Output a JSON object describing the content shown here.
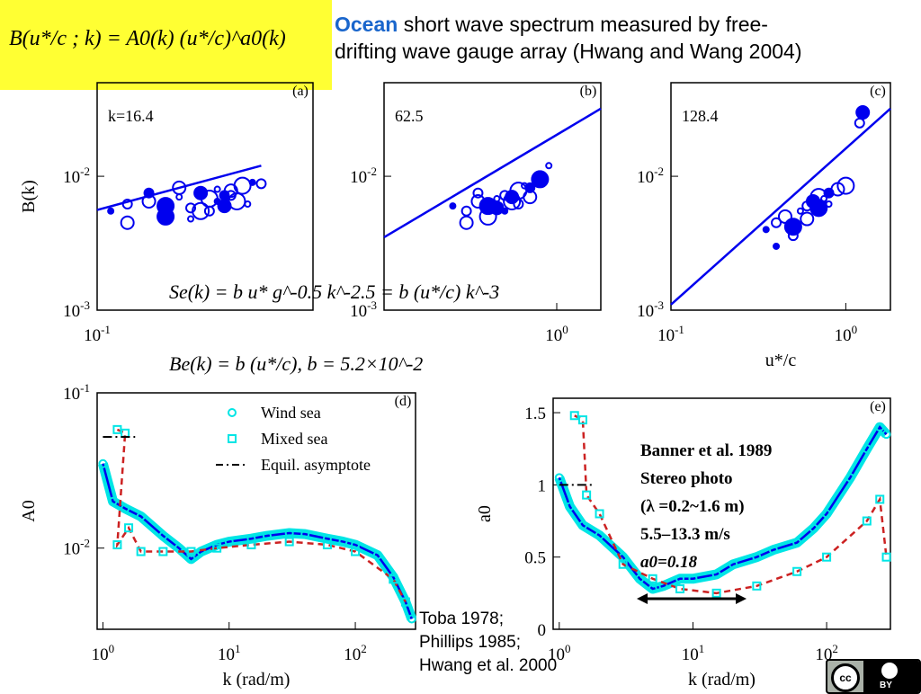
{
  "colors": {
    "accent": "#1a66cc",
    "series": "#0000ee",
    "wind": "#00e5e5",
    "dashed": "#cc2222",
    "highlight": "#ffff33"
  },
  "header": {
    "formula": "B(u*/c ; k) = A0(k) (u*/c)^a0(k)",
    "accent_word": "Ocean",
    "title_line1": " short wave spectrum measured by free-",
    "title_line2": "drifting wave gauge array (Hwang and Wang 2004)"
  },
  "equations": {
    "eq1": "Se(k) = b u* g^-0.5 k^-2.5 = b (u*/c) k^-3",
    "eq2": "Be(k) = b (u*/c),    b = 5.2×10^-2"
  },
  "citation": {
    "line1": "Toba 1978;",
    "line2": "Phillips 1985;",
    "line3": "Hwang et al. 2000"
  },
  "annotation": {
    "line1": "Banner et al. 1989",
    "line2": "Stereo photo",
    "line3": "(λ =0.2~1.6 m)",
    "line4": "5.5–13.3 m/s",
    "line5": "a0=0.18"
  },
  "license_icon": "cc-by-icon",
  "license_label": "BY",
  "chart_data": [
    {
      "type": "scatter",
      "panel": "(a)",
      "label": "k=16.4",
      "ylabel": "B(k)",
      "yscale": "log",
      "xscale": "log",
      "ylim": [
        0.001,
        0.05
      ],
      "xlim": [
        0.1,
        1.8
      ],
      "ytick_labels": [
        "10^-2",
        "10^-3"
      ],
      "xtick_labels": [
        "10^-1"
      ],
      "fit": {
        "x": [
          0.1,
          0.9
        ],
        "y": [
          0.0056,
          0.012
        ]
      },
      "points": {
        "x": [
          0.12,
          0.15,
          0.2,
          0.25,
          0.3,
          0.35,
          0.4,
          0.45,
          0.5,
          0.55,
          0.6,
          0.7,
          0.8,
          0.9,
          0.15,
          0.25,
          0.35,
          0.45,
          0.55,
          0.65,
          0.75,
          0.2,
          0.3,
          0.4,
          0.5,
          0.6
        ],
        "y": [
          0.0055,
          0.0062,
          0.0065,
          0.006,
          0.007,
          0.0058,
          0.0075,
          0.0068,
          0.008,
          0.0072,
          0.0078,
          0.0085,
          0.009,
          0.0088,
          0.0045,
          0.005,
          0.0048,
          0.0055,
          0.006,
          0.0065,
          0.0062,
          0.0075,
          0.0082,
          0.0055,
          0.0065,
          0.0072
        ]
      }
    },
    {
      "type": "scatter",
      "panel": "(b)",
      "label": "62.5",
      "yscale": "log",
      "xscale": "log",
      "ylim": [
        0.001,
        0.05
      ],
      "xlim": [
        0.1,
        1.8
      ],
      "ytick_labels": [
        "10^-2",
        "10^-3"
      ],
      "xtick_labels": [
        "10^0"
      ],
      "fit": {
        "x": [
          0.1,
          1.8
        ],
        "y": [
          0.0035,
          0.032
        ]
      },
      "points": {
        "x": [
          0.25,
          0.3,
          0.35,
          0.4,
          0.45,
          0.5,
          0.55,
          0.6,
          0.65,
          0.7,
          0.3,
          0.4,
          0.5,
          0.6,
          0.7,
          0.8,
          0.9,
          0.35,
          0.45,
          0.55
        ],
        "y": [
          0.006,
          0.0055,
          0.0065,
          0.006,
          0.0068,
          0.0072,
          0.007,
          0.0078,
          0.0085,
          0.0082,
          0.0045,
          0.005,
          0.0055,
          0.0062,
          0.007,
          0.0095,
          0.012,
          0.0075,
          0.0058,
          0.0065
        ]
      }
    },
    {
      "type": "scatter",
      "panel": "(c)",
      "label": "128.4",
      "xlabel": "u*/c",
      "yscale": "log",
      "xscale": "log",
      "ylim": [
        0.001,
        0.05
      ],
      "xlim": [
        0.1,
        1.8
      ],
      "ytick_labels": [
        "10^-2",
        "10^-3"
      ],
      "xtick_labels": [
        "10^-1",
        "10^0"
      ],
      "fit": {
        "x": [
          0.1,
          1.8
        ],
        "y": [
          0.0011,
          0.032
        ]
      },
      "points": {
        "x": [
          0.35,
          0.4,
          0.45,
          0.5,
          0.55,
          0.6,
          0.65,
          0.7,
          0.75,
          0.8,
          0.9,
          1.0,
          0.4,
          0.5,
          0.6,
          0.7,
          0.8,
          1.2,
          1.25
        ],
        "y": [
          0.004,
          0.0045,
          0.005,
          0.0042,
          0.0055,
          0.006,
          0.0065,
          0.007,
          0.0068,
          0.0075,
          0.008,
          0.0085,
          0.003,
          0.0036,
          0.0048,
          0.0058,
          0.0062,
          0.025,
          0.03
        ]
      }
    },
    {
      "type": "line",
      "panel": "(d)",
      "ylabel": "A0",
      "xlabel": "k (rad/m)",
      "yscale": "log",
      "xscale": "log",
      "ylim": [
        0.003,
        0.1
      ],
      "xlim": [
        0.9,
        300
      ],
      "ytick_labels": [
        "10^-1",
        "10^-2"
      ],
      "xtick_labels": [
        "10^0",
        "10^1",
        "10^2"
      ],
      "legend": [
        "Wind sea",
        "Mixed sea",
        "Equil. asymptote"
      ],
      "legend_position": "top-right",
      "series": [
        {
          "name": "Wind sea",
          "style": "markers-o",
          "x": [
            1,
            1.2,
            1.5,
            2,
            3,
            4,
            5,
            6,
            8,
            10,
            15,
            20,
            30,
            40,
            60,
            80,
            100,
            150,
            200,
            250,
            280
          ],
          "y": [
            0.035,
            0.02,
            0.018,
            0.016,
            0.012,
            0.01,
            0.0085,
            0.0095,
            0.0105,
            0.011,
            0.0115,
            0.012,
            0.0125,
            0.0123,
            0.0115,
            0.011,
            0.0105,
            0.009,
            0.0065,
            0.0045,
            0.0035
          ]
        },
        {
          "name": "Mixed sea",
          "style": "markers-square",
          "x": [
            1.3,
            1.5,
            1.3,
            1.6,
            2,
            3,
            5,
            8,
            15,
            30,
            60,
            100,
            200,
            250
          ],
          "y": [
            0.058,
            0.055,
            0.0105,
            0.0135,
            0.0095,
            0.0095,
            0.0095,
            0.01,
            0.0105,
            0.011,
            0.0105,
            0.0095,
            0.0063,
            0.0045
          ]
        },
        {
          "name": "Equil. asymptote",
          "style": "dash-dot",
          "x": [
            1,
            1.8
          ],
          "y": [
            0.052,
            0.052
          ]
        }
      ]
    },
    {
      "type": "line",
      "panel": "(e)",
      "ylabel": "a0",
      "xlabel": "k (rad/m)",
      "xscale": "log",
      "ylim": [
        0,
        1.6
      ],
      "xlim": [
        0.9,
        300
      ],
      "ytick_labels": [
        "1.5",
        "1",
        "0.5",
        "0"
      ],
      "xtick_labels": [
        "10^0",
        "10^1",
        "10^2"
      ],
      "series": [
        {
          "name": "Wind sea",
          "style": "markers-o",
          "x": [
            1,
            1.2,
            1.5,
            2,
            3,
            4,
            5,
            6,
            8,
            10,
            15,
            20,
            30,
            40,
            60,
            80,
            100,
            150,
            200,
            250,
            280
          ],
          "y": [
            1.05,
            0.85,
            0.72,
            0.65,
            0.5,
            0.35,
            0.28,
            0.3,
            0.35,
            0.35,
            0.38,
            0.45,
            0.5,
            0.55,
            0.6,
            0.7,
            0.8,
            1.05,
            1.25,
            1.4,
            1.35
          ]
        },
        {
          "name": "Mixed sea",
          "style": "markers-square",
          "x": [
            1.3,
            1.5,
            1.6,
            2,
            3,
            5,
            8,
            15,
            30,
            60,
            100,
            200,
            250,
            280
          ],
          "y": [
            1.48,
            1.45,
            0.93,
            0.8,
            0.45,
            0.35,
            0.28,
            0.25,
            0.3,
            0.4,
            0.5,
            0.75,
            0.9,
            0.5
          ]
        },
        {
          "name": "Equil. asymptote",
          "style": "dash-dot",
          "x": [
            1,
            1.8
          ],
          "y": [
            1,
            1
          ]
        }
      ]
    }
  ]
}
